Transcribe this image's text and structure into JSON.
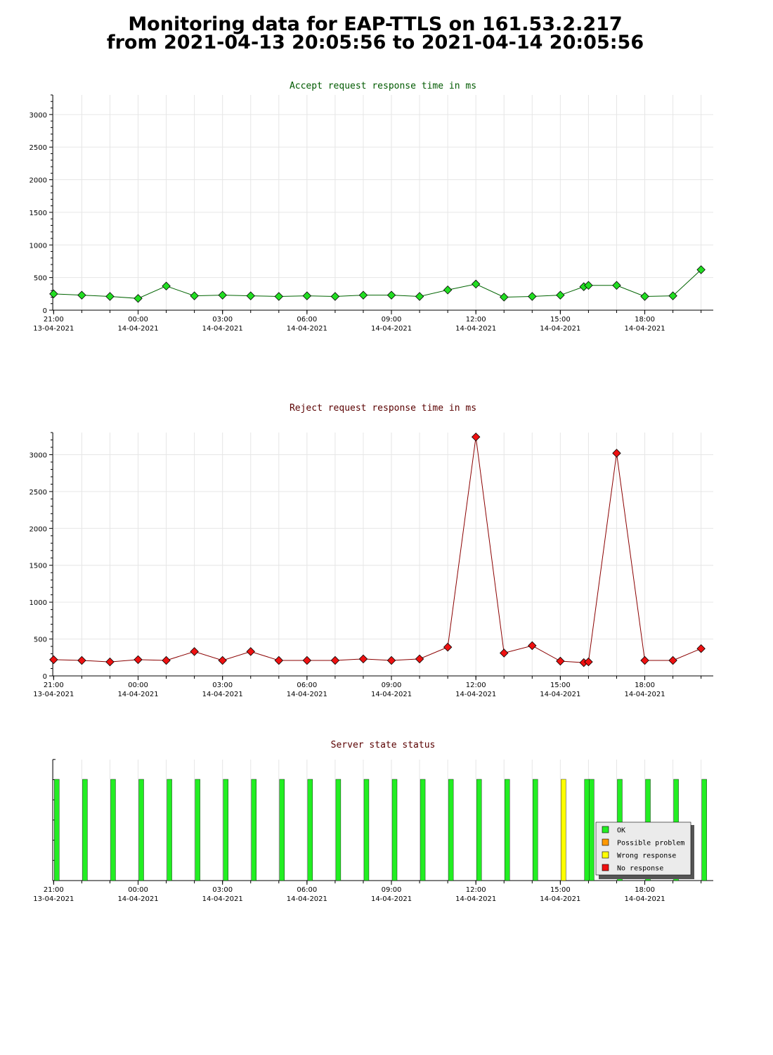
{
  "page": {
    "title_line1": "Monitoring data for EAP-TTLS on 161.53.2.217",
    "title_line2": "from 2021-04-13 20:05:56 to 2021-04-14 20:05:56"
  },
  "x_axis": {
    "ticks": [
      {
        "time": "21:00",
        "date": "13-04-2021"
      },
      {
        "time": "00:00",
        "date": "14-04-2021"
      },
      {
        "time": "03:00",
        "date": "14-04-2021"
      },
      {
        "time": "06:00",
        "date": "14-04-2021"
      },
      {
        "time": "09:00",
        "date": "14-04-2021"
      },
      {
        "time": "12:00",
        "date": "14-04-2021"
      },
      {
        "time": "15:00",
        "date": "14-04-2021"
      },
      {
        "time": "18:00",
        "date": "14-04-2021"
      }
    ]
  },
  "colors": {
    "accept_line": "#006400",
    "accept_marker": "#22dd22",
    "reject_line": "#8b0000",
    "reject_marker": "#ee1111",
    "grid": "#e6e6e6",
    "title_accept": "#005a00",
    "title_reject": "#5a0000",
    "status_ok": "#22ee22",
    "status_possible": "#ff9900",
    "status_wrong": "#ffff00",
    "status_none": "#ee1111"
  },
  "chart_data": [
    {
      "type": "line",
      "title": "Accept request response time in ms",
      "xlabel": "",
      "ylabel": "",
      "xlim": [
        "2021-04-13 20:58",
        "2021-04-14 20:26"
      ],
      "ylim": [
        0,
        3300
      ],
      "yticks": [
        0,
        500,
        1000,
        1500,
        2000,
        2500,
        3000
      ],
      "grid": true,
      "series": [
        {
          "x": [
            "2021-04-13 21:00",
            "2021-04-13 22:00",
            "2021-04-13 23:00",
            "2021-04-14 00:00",
            "2021-04-14 01:00",
            "2021-04-14 02:00",
            "2021-04-14 03:00",
            "2021-04-14 04:00",
            "2021-04-14 05:00",
            "2021-04-14 06:00",
            "2021-04-14 07:00",
            "2021-04-14 08:00",
            "2021-04-14 09:00",
            "2021-04-14 10:00",
            "2021-04-14 11:00",
            "2021-04-14 12:00",
            "2021-04-14 13:00",
            "2021-04-14 14:00",
            "2021-04-14 15:00",
            "2021-04-14 15:50",
            "2021-04-14 16:00",
            "2021-04-14 17:00",
            "2021-04-14 18:00",
            "2021-04-14 19:00",
            "2021-04-14 20:00"
          ],
          "values": [
            250,
            230,
            210,
            180,
            370,
            220,
            230,
            220,
            210,
            220,
            210,
            230,
            230,
            210,
            310,
            400,
            200,
            210,
            230,
            360,
            380,
            380,
            210,
            220,
            620
          ]
        }
      ]
    },
    {
      "type": "line",
      "title": "Reject request response time in ms",
      "xlabel": "",
      "ylabel": "",
      "xlim": [
        "2021-04-13 20:58",
        "2021-04-14 20:26"
      ],
      "ylim": [
        0,
        3300
      ],
      "yticks": [
        0,
        500,
        1000,
        1500,
        2000,
        2500,
        3000
      ],
      "grid": true,
      "series": [
        {
          "x": [
            "2021-04-13 21:00",
            "2021-04-13 22:00",
            "2021-04-13 23:00",
            "2021-04-14 00:00",
            "2021-04-14 01:00",
            "2021-04-14 02:00",
            "2021-04-14 03:00",
            "2021-04-14 04:00",
            "2021-04-14 05:00",
            "2021-04-14 06:00",
            "2021-04-14 07:00",
            "2021-04-14 08:00",
            "2021-04-14 09:00",
            "2021-04-14 10:00",
            "2021-04-14 11:00",
            "2021-04-14 12:00",
            "2021-04-14 13:00",
            "2021-04-14 14:00",
            "2021-04-14 15:00",
            "2021-04-14 15:50",
            "2021-04-14 16:00",
            "2021-04-14 17:00",
            "2021-04-14 18:00",
            "2021-04-14 19:00",
            "2021-04-14 20:00"
          ],
          "values": [
            220,
            210,
            190,
            220,
            210,
            330,
            210,
            330,
            210,
            210,
            210,
            230,
            210,
            230,
            390,
            3240,
            310,
            410,
            200,
            180,
            190,
            3020,
            210,
            210,
            370
          ]
        }
      ]
    },
    {
      "type": "bar",
      "title": "Server state status",
      "legend_position": "bottom-right",
      "legend": [
        "OK",
        "Possible problem",
        "Wrong response",
        "No response"
      ],
      "x": [
        "2021-04-13 21:00",
        "2021-04-13 22:00",
        "2021-04-13 23:00",
        "2021-04-14 00:00",
        "2021-04-14 01:00",
        "2021-04-14 02:00",
        "2021-04-14 03:00",
        "2021-04-14 04:00",
        "2021-04-14 05:00",
        "2021-04-14 06:00",
        "2021-04-14 07:00",
        "2021-04-14 08:00",
        "2021-04-14 09:00",
        "2021-04-14 10:00",
        "2021-04-14 11:00",
        "2021-04-14 12:00",
        "2021-04-14 13:00",
        "2021-04-14 14:00",
        "2021-04-14 15:00",
        "2021-04-14 15:50",
        "2021-04-14 16:00",
        "2021-04-14 17:00",
        "2021-04-14 18:00",
        "2021-04-14 19:00",
        "2021-04-14 20:00"
      ],
      "states": [
        "OK",
        "OK",
        "OK",
        "OK",
        "OK",
        "OK",
        "OK",
        "OK",
        "OK",
        "OK",
        "OK",
        "OK",
        "OK",
        "OK",
        "OK",
        "OK",
        "OK",
        "OK",
        "Wrong response",
        "OK",
        "OK",
        "OK",
        "OK",
        "OK",
        "OK"
      ]
    }
  ]
}
